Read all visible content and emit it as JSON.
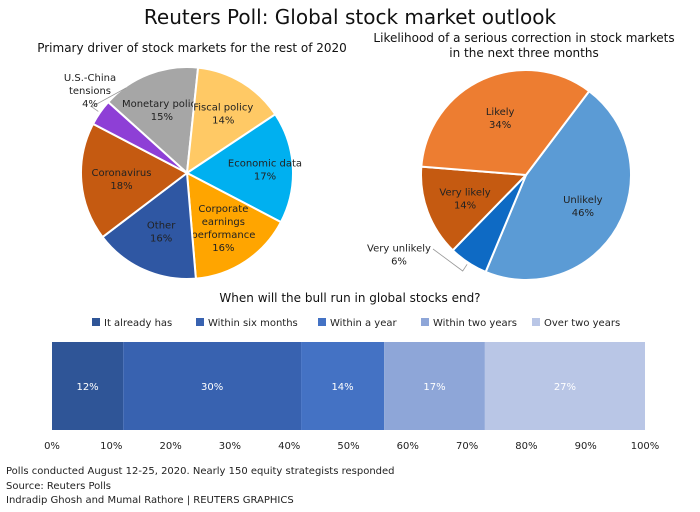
{
  "title": "Reuters Poll: Global stock market outlook",
  "chart_data": [
    {
      "type": "pie",
      "title": "Primary driver of stock markets for the rest of 2020",
      "slices": [
        {
          "label": [
            "Monetary policy"
          ],
          "value": 15,
          "value_label": "15%",
          "color": "#a6a6a6"
        },
        {
          "label": [
            "Fiscal policy"
          ],
          "value": 14,
          "value_label": "14%",
          "color": "#ffc965"
        },
        {
          "label": [
            "Economic data"
          ],
          "value": 17,
          "value_label": "17%",
          "color": "#00b0f0"
        },
        {
          "label": [
            "Corporate",
            "earnings",
            "performance"
          ],
          "value": 16,
          "value_label": "16%",
          "color": "#ffa500"
        },
        {
          "label": [
            "Other"
          ],
          "value": 16,
          "value_label": "16%",
          "color": "#2f57a3"
        },
        {
          "label": [
            "Coronavirus"
          ],
          "value": 18,
          "value_label": "18%",
          "color": "#c55a11"
        },
        {
          "label": [
            "U.S.-China",
            "tensions"
          ],
          "value": 4,
          "value_label": "4%",
          "color": "#8e3fd6"
        }
      ]
    },
    {
      "type": "pie",
      "title": [
        "Likelihood of a serious correction in stock markets",
        "in the next three months"
      ],
      "slices": [
        {
          "label": [
            "Unlikely"
          ],
          "value": 46,
          "value_label": "46%",
          "color": "#5b9bd5"
        },
        {
          "label": [
            "Very unlikely"
          ],
          "value": 6,
          "value_label": "6%",
          "color": "#0e6ac4"
        },
        {
          "label": [
            "Very likely"
          ],
          "value": 14,
          "value_label": "14%",
          "color": "#c55a11"
        },
        {
          "label": [
            "Likely"
          ],
          "value": 34,
          "value_label": "34%",
          "color": "#ed7d31"
        }
      ]
    },
    {
      "type": "bar",
      "orientation": "horizontal-stacked",
      "title": "When will the bull run in global stocks end?",
      "legend_position": "top",
      "series": [
        {
          "name": "It already has",
          "value": 12,
          "value_label": "12%",
          "color": "#2f5597"
        },
        {
          "name": "Within six months",
          "value": 30,
          "value_label": "30%",
          "color": "#3862b0"
        },
        {
          "name": "Within a year",
          "value": 14,
          "value_label": "14%",
          "color": "#4472c4"
        },
        {
          "name": "Within two years",
          "value": 17,
          "value_label": "17%",
          "color": "#8ea6d8"
        },
        {
          "name": "Over two years",
          "value": 27,
          "value_label": "27%",
          "color": "#b9c6e6"
        }
      ],
      "xlim": [
        0,
        100
      ],
      "xticks": [
        "0%",
        "10%",
        "20%",
        "30%",
        "40%",
        "50%",
        "60%",
        "70%",
        "80%",
        "90%",
        "100%"
      ]
    }
  ],
  "footer": [
    "Polls conducted August 12-25, 2020. Nearly 150 equity strategists responded",
    "Source: Reuters Polls",
    "Indradip Ghosh and Mumal Rathore | REUTERS GRAPHICS"
  ]
}
